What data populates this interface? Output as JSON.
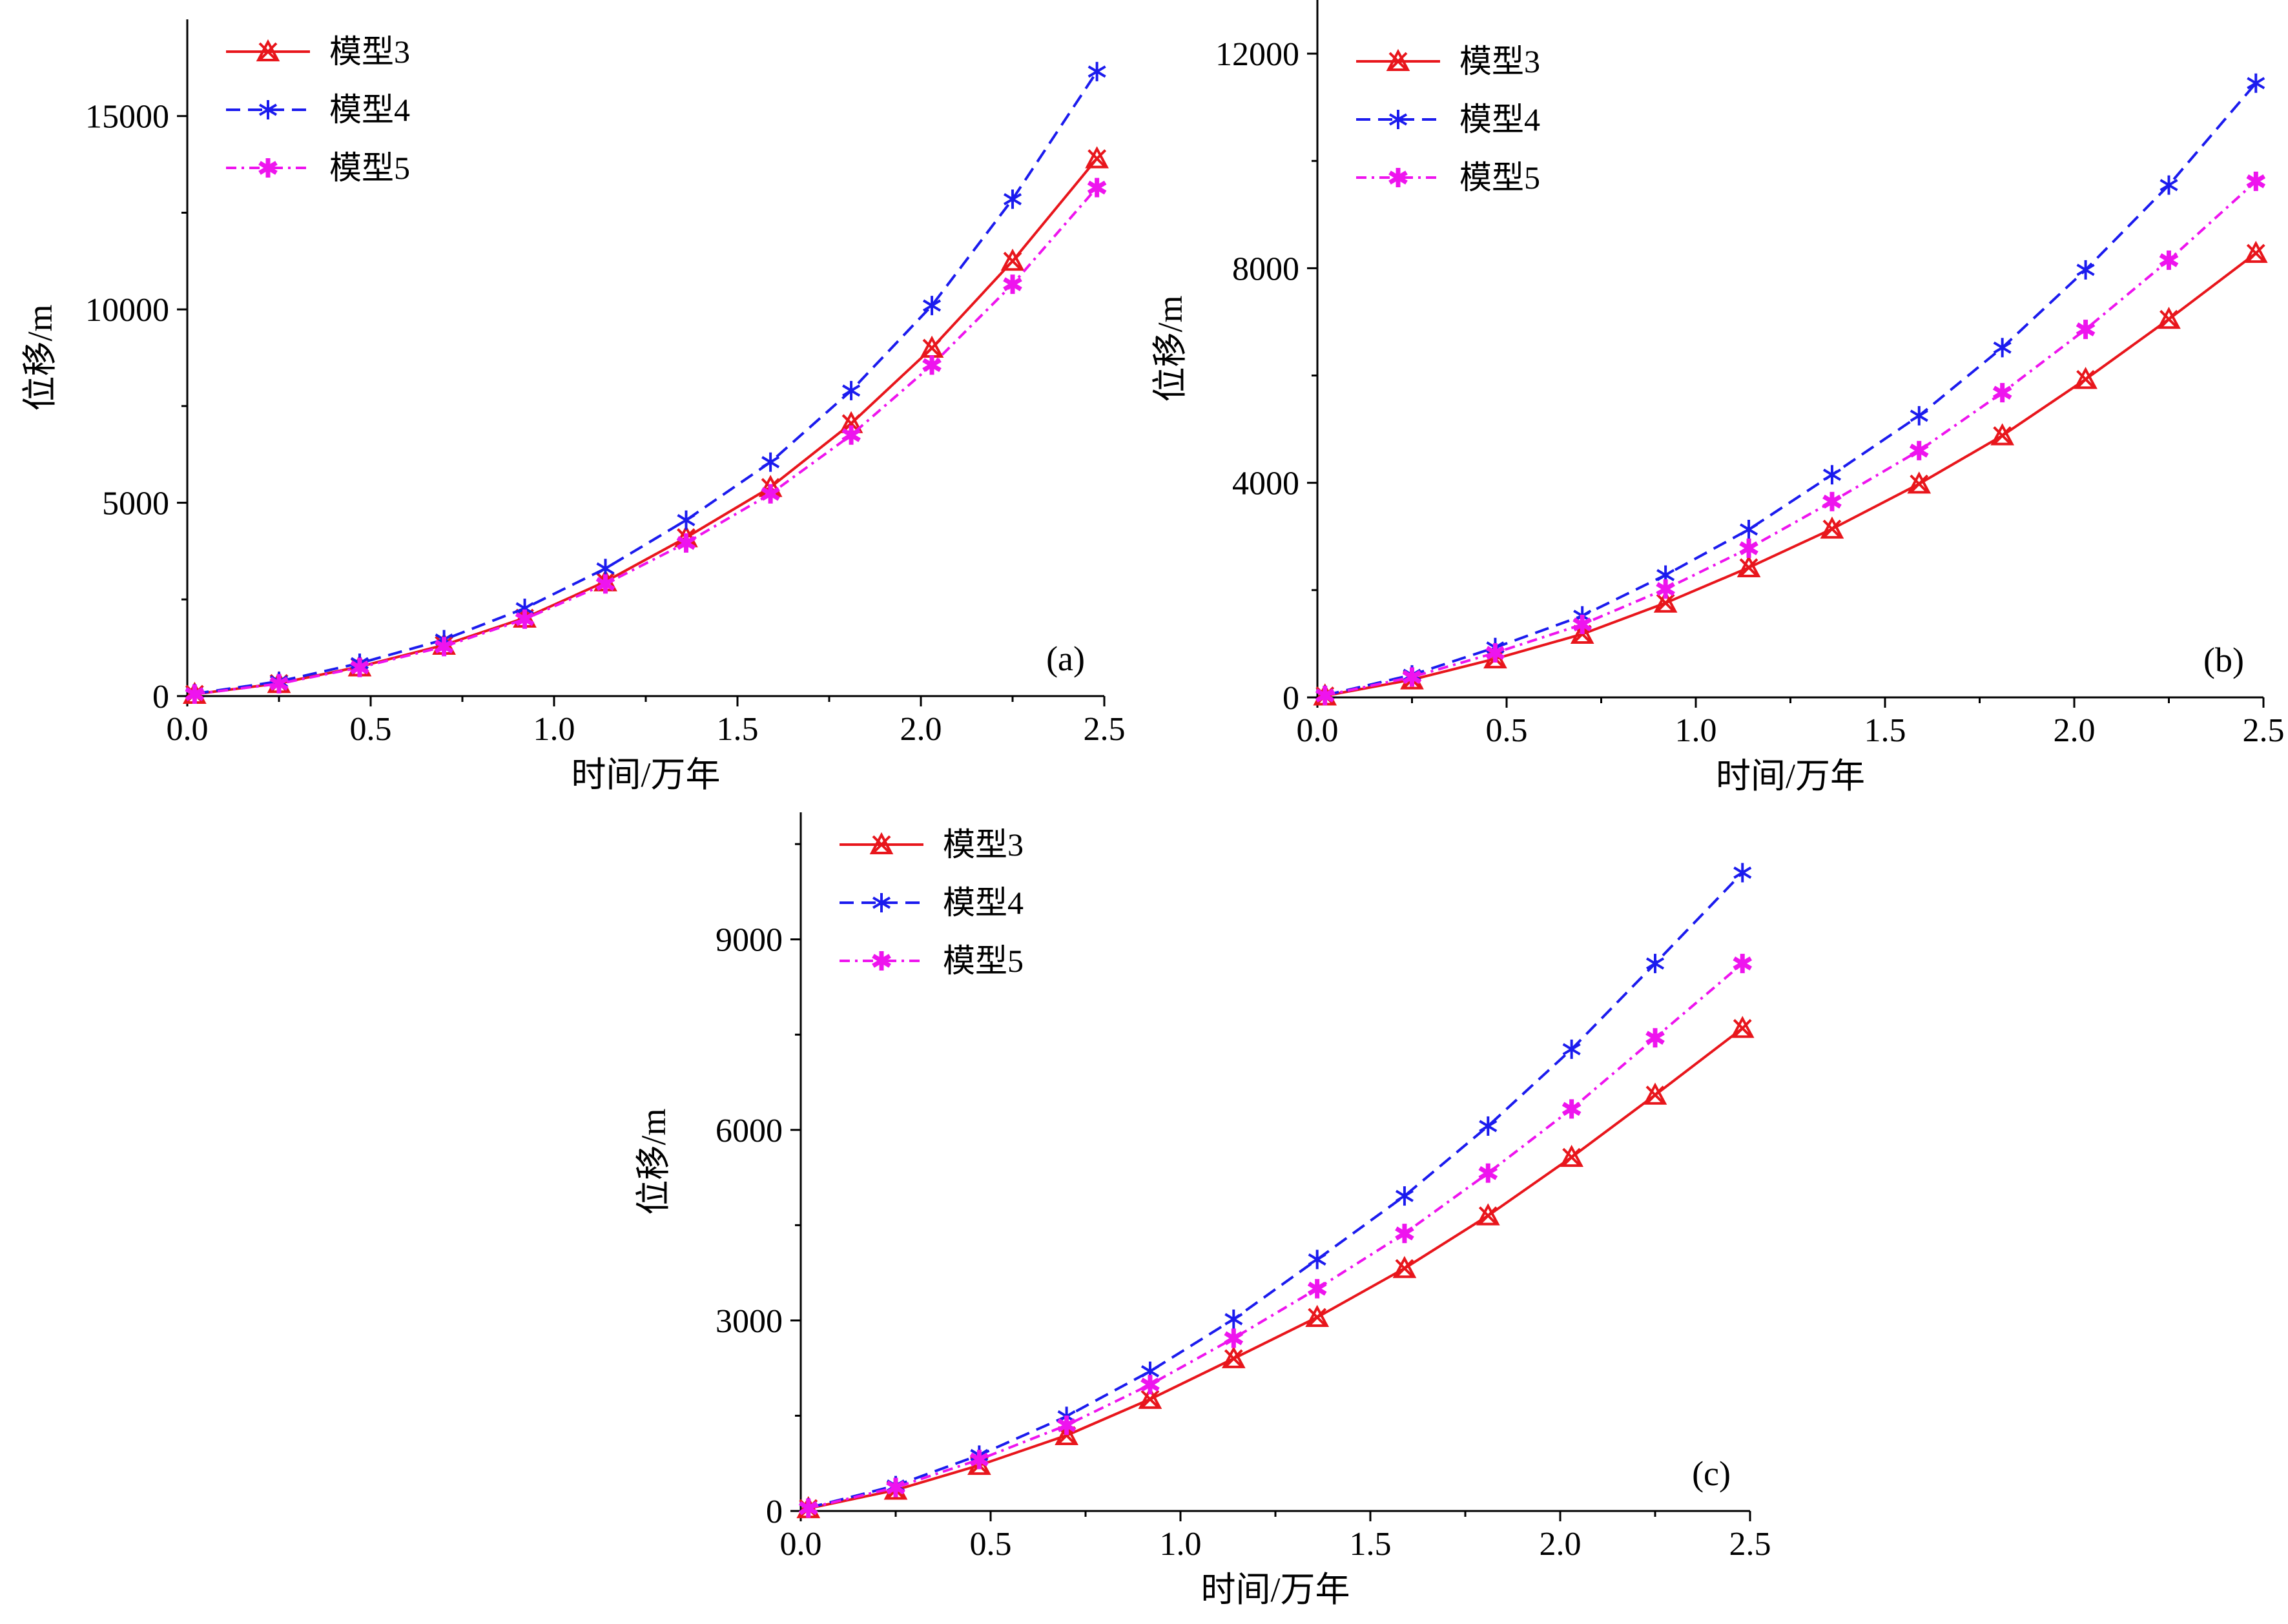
{
  "colors": {
    "model3": "#e8161c",
    "model4": "#1b1bee",
    "model5": "#ee14ee",
    "axis": "#000000"
  },
  "chart_data": [
    {
      "id": "a",
      "type": "line",
      "panel_label": "(a)",
      "xlabel": "时间/万年",
      "ylabel": "位移/m",
      "xlim": [
        0,
        2.5
      ],
      "ylim": [
        0,
        17500
      ],
      "xticks": [
        0,
        0.5,
        1,
        1.5,
        2,
        2.5
      ],
      "xtick_labels": [
        "0.0",
        "0.5",
        "1.0",
        "1.5",
        "2.0",
        "2.5"
      ],
      "yticks": [
        0,
        5000,
        10000,
        15000
      ],
      "ytick_labels": [
        "0",
        "5000",
        "10000",
        "15000"
      ],
      "legend_position": "top-left",
      "x": [
        0.02,
        0.25,
        0.47,
        0.7,
        0.92,
        1.14,
        1.36,
        1.59,
        1.81,
        2.03,
        2.25,
        2.48
      ],
      "series": [
        {
          "name": "模型3",
          "key": "model3",
          "dash": "solid",
          "marker": "x-triangle",
          "values": [
            50,
            330,
            760,
            1320,
            2020,
            2960,
            4100,
            5400,
            7050,
            9000,
            11250,
            13900
          ]
        },
        {
          "name": "模型4",
          "key": "model4",
          "dash": "dashed",
          "marker": "asterisk",
          "values": [
            60,
            380,
            850,
            1460,
            2270,
            3300,
            4550,
            6050,
            7900,
            10100,
            12850,
            16150
          ]
        },
        {
          "name": "模型5",
          "key": "model5",
          "dash": "dashdot",
          "marker": "asterisk-bold",
          "values": [
            50,
            320,
            740,
            1280,
            1990,
            2900,
            3960,
            5230,
            6750,
            8560,
            10650,
            13150
          ]
        }
      ]
    },
    {
      "id": "b",
      "type": "line",
      "panel_label": "(b)",
      "xlabel": "时间/万年",
      "ylabel": "位移/m",
      "xlim": [
        0,
        2.5
      ],
      "ylim": [
        0,
        13000
      ],
      "xticks": [
        0,
        0.5,
        1,
        1.5,
        2,
        2.5
      ],
      "xtick_labels": [
        "0.0",
        "0.5",
        "1.0",
        "1.5",
        "2.0",
        "2.5"
      ],
      "yticks": [
        0,
        4000,
        8000,
        12000
      ],
      "ytick_labels": [
        "0",
        "4000",
        "8000",
        "12000"
      ],
      "legend_position": "top-left",
      "x": [
        0.02,
        0.25,
        0.47,
        0.7,
        0.92,
        1.14,
        1.36,
        1.59,
        1.81,
        2.03,
        2.25,
        2.48
      ],
      "series": [
        {
          "name": "模型3",
          "key": "model3",
          "dash": "solid",
          "marker": "x-triangle",
          "values": [
            30,
            330,
            720,
            1180,
            1760,
            2420,
            3140,
            3980,
            4880,
            5930,
            7050,
            8280
          ]
        },
        {
          "name": "模型4",
          "key": "model4",
          "dash": "dashed",
          "marker": "asterisk",
          "values": [
            40,
            420,
            930,
            1520,
            2280,
            3130,
            4150,
            5250,
            6520,
            7970,
            9550,
            11450
          ]
        },
        {
          "name": "模型5",
          "key": "model5",
          "dash": "dashdot",
          "marker": "asterisk-bold",
          "values": [
            35,
            380,
            830,
            1360,
            2020,
            2780,
            3650,
            4600,
            5680,
            6860,
            8150,
            9620
          ]
        }
      ]
    },
    {
      "id": "c",
      "type": "line",
      "panel_label": "(c)",
      "xlabel": "时间/万年",
      "ylabel": "位移/m",
      "xlim": [
        0,
        2.5
      ],
      "ylim": [
        0,
        11000
      ],
      "xticks": [
        0,
        0.5,
        1,
        1.5,
        2,
        2.5
      ],
      "xtick_labels": [
        "0.0",
        "0.5",
        "1.0",
        "1.5",
        "2.0",
        "2.5"
      ],
      "yticks": [
        0,
        3000,
        6000,
        9000
      ],
      "ytick_labels": [
        "0",
        "3000",
        "6000",
        "9000"
      ],
      "legend_position": "top-left",
      "x": [
        0.02,
        0.25,
        0.47,
        0.7,
        0.92,
        1.14,
        1.36,
        1.59,
        1.81,
        2.03,
        2.25,
        2.48
      ],
      "series": [
        {
          "name": "模型3",
          "key": "model3",
          "dash": "solid",
          "marker": "x-triangle",
          "values": [
            40,
            330,
            720,
            1190,
            1760,
            2400,
            3050,
            3820,
            4650,
            5570,
            6550,
            7600
          ]
        },
        {
          "name": "模型4",
          "key": "model4",
          "dash": "dashed",
          "marker": "asterisk",
          "values": [
            50,
            400,
            880,
            1490,
            2200,
            3020,
            3960,
            4960,
            6060,
            7270,
            8620,
            10050
          ]
        },
        {
          "name": "模型5",
          "key": "model5",
          "dash": "dashdot",
          "marker": "asterisk-bold",
          "values": [
            45,
            370,
            810,
            1350,
            1990,
            2720,
            3500,
            4370,
            5320,
            6330,
            7450,
            8620
          ]
        }
      ]
    }
  ]
}
